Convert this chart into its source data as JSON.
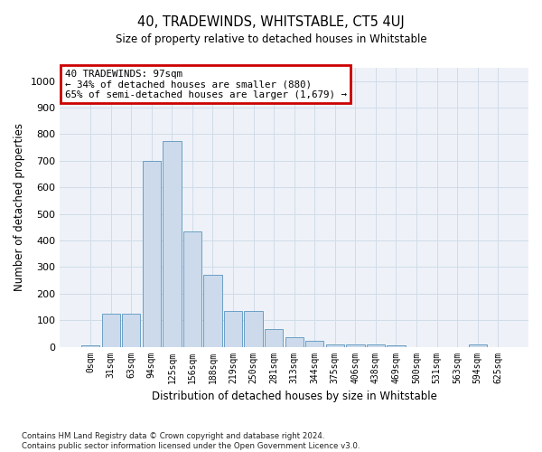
{
  "title": "40, TRADEWINDS, WHITSTABLE, CT5 4UJ",
  "subtitle": "Size of property relative to detached houses in Whitstable",
  "xlabel": "Distribution of detached houses by size in Whitstable",
  "ylabel": "Number of detached properties",
  "footer_line1": "Contains HM Land Registry data © Crown copyright and database right 2024.",
  "footer_line2": "Contains public sector information licensed under the Open Government Licence v3.0.",
  "bar_labels": [
    "0sqm",
    "31sqm",
    "63sqm",
    "94sqm",
    "125sqm",
    "156sqm",
    "188sqm",
    "219sqm",
    "250sqm",
    "281sqm",
    "313sqm",
    "344sqm",
    "375sqm",
    "406sqm",
    "438sqm",
    "469sqm",
    "500sqm",
    "531sqm",
    "563sqm",
    "594sqm",
    "625sqm"
  ],
  "bar_values": [
    5,
    125,
    125,
    700,
    775,
    435,
    270,
    135,
    135,
    65,
    37,
    22,
    10,
    10,
    10,
    5,
    0,
    0,
    0,
    10,
    0
  ],
  "bar_color": "#ccdaeb",
  "bar_edge_color": "#6b9fc4",
  "annotation_text": "40 TRADEWINDS: 97sqm\n← 34% of detached houses are smaller (880)\n65% of semi-detached houses are larger (1,679) →",
  "annotation_box_color": "#cc0000",
  "grid_color": "#d0dce8",
  "bg_color": "#eef2f8",
  "ylim": [
    0,
    1050
  ],
  "yticks": [
    0,
    100,
    200,
    300,
    400,
    500,
    600,
    700,
    800,
    900,
    1000
  ],
  "fig_width": 6.0,
  "fig_height": 5.0,
  "dpi": 100
}
